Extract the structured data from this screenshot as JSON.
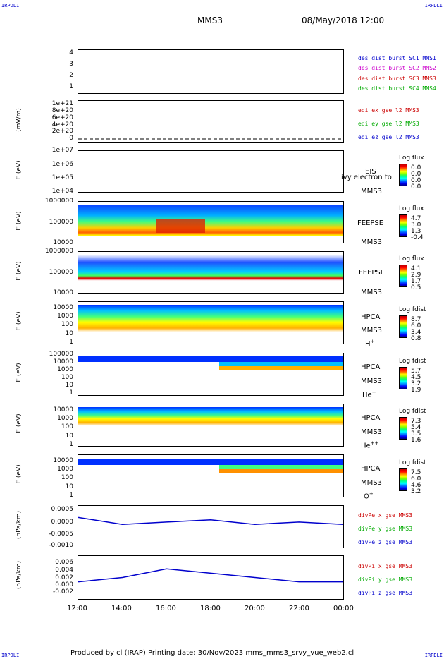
{
  "header": {
    "left_mark": "IRPDLI",
    "right_mark": "IRPDLI",
    "spacecraft": "MMS3",
    "datetime": "08/May/2018 12:00"
  },
  "footer": {
    "left_mark": "IRPDLI",
    "right_mark": "IRPDLI",
    "text": "Produced by cl (IRAP)   Printing date: 30/Nov/2023   mms_mms3_srvy_vue_web2.cl"
  },
  "x_axis": {
    "ticks": [
      "12:00",
      "14:00",
      "16:00",
      "18:00",
      "20:00",
      "22:00",
      "00:00"
    ]
  },
  "panels": {
    "burst": {
      "yticks": [
        "4",
        "3",
        "2",
        "1"
      ],
      "legend": [
        {
          "text": "des dist burst SC1 MMS1",
          "color": "#0000cc"
        },
        {
          "text": "des dist burst SC2 MMS2",
          "color": "#cc00cc"
        },
        {
          "text": "des dist burst SC3 MMS3",
          "color": "#cc0000"
        },
        {
          "text": "des dist burst SC4 MMS4",
          "color": "#00aa00"
        }
      ]
    },
    "edi": {
      "ylabel": "(mV/m)",
      "yticks": [
        "1e+21",
        "8e+20",
        "6e+20",
        "4e+20",
        "2e+20",
        "0"
      ],
      "legend": [
        {
          "text": "edi ex gse l2 MMS3",
          "color": "#cc0000"
        },
        {
          "text": "edi ey gse l2 MMS3",
          "color": "#00aa00"
        },
        {
          "text": "edi ez gse l2 MMS3",
          "color": "#0000cc"
        }
      ]
    },
    "eis": {
      "ylabel": "E (eV)",
      "yticks": [
        "1e+07",
        "1e+06",
        "1e+05",
        "1e+04"
      ],
      "instrument": "EIS",
      "overlay": "ivy electron to",
      "sc": "MMS3",
      "cbar_title": "Log flux",
      "cbar_vals": [
        "0.0",
        "0.0",
        "0.0",
        "0.0"
      ]
    },
    "feepse": {
      "ylabel": "E (eV)",
      "yticks": [
        "1000000",
        "100000",
        "10000"
      ],
      "instrument": "FEEPSE",
      "sc": "MMS3",
      "cbar_title": "Log flux",
      "cbar_vals": [
        "4.7",
        "3.0",
        "1.3",
        "-0.4"
      ]
    },
    "feepsi": {
      "ylabel": "E (eV)",
      "yticks": [
        "1000000",
        "100000",
        "10000"
      ],
      "instrument": "FEEPSI",
      "sc": "MMS3",
      "cbar_title": "Log flux",
      "cbar_vals": [
        "4.1",
        "2.9",
        "1.7",
        "0.5"
      ]
    },
    "hpca_h": {
      "ylabel": "E (eV)",
      "yticks": [
        "10000",
        "1000",
        "100",
        "10",
        "1"
      ],
      "instrument": "HPCA",
      "sc": "MMS3",
      "ion": "H",
      "charge": "+",
      "cbar_title": "Log fdist",
      "cbar_vals": [
        "8.7",
        "6.0",
        "3.4",
        "0.8"
      ]
    },
    "hpca_he": {
      "ylabel": "E (eV)",
      "yticks": [
        "100000",
        "10000",
        "1000",
        "100",
        "10",
        "1"
      ],
      "instrument": "HPCA",
      "sc": "MMS3",
      "ion": "He",
      "charge": "+",
      "cbar_title": "Log fdist",
      "cbar_vals": [
        "5.7",
        "4.5",
        "3.2",
        "1.9"
      ]
    },
    "hpca_hepp": {
      "ylabel": "E (eV)",
      "yticks": [
        "10000",
        "1000",
        "100",
        "10",
        "1"
      ],
      "instrument": "HPCA",
      "sc": "MMS3",
      "ion": "He",
      "charge": "++",
      "cbar_title": "Log fdist",
      "cbar_vals": [
        "7.3",
        "5.4",
        "3.5",
        "1.6"
      ]
    },
    "hpca_o": {
      "ylabel": "E (eV)",
      "yticks": [
        "10000",
        "1000",
        "100",
        "10",
        "1"
      ],
      "instrument": "HPCA",
      "sc": "MMS3",
      "ion": "O",
      "charge": "+",
      "cbar_title": "Log fdist",
      "cbar_vals": [
        "7.5",
        "6.0",
        "4.6",
        "3.2"
      ]
    },
    "divpe": {
      "ylabel": "(nPa/km)",
      "yticks": [
        "0.0005",
        "0.0000",
        "-0.0005",
        "-0.0010"
      ],
      "legend": [
        {
          "text": "divPe x gse MMS3",
          "color": "#cc0000"
        },
        {
          "text": "divPe y gse MMS3",
          "color": "#00aa00"
        },
        {
          "text": "divPe z gse MMS3",
          "color": "#0000cc"
        }
      ]
    },
    "divpi": {
      "ylabel": "(nPa/km)",
      "yticks": [
        "0.006",
        "0.004",
        "0.002",
        "0.000",
        "-0.002"
      ],
      "legend": [
        {
          "text": "divPi x gse MMS3",
          "color": "#cc0000"
        },
        {
          "text": "divPi y gse MMS3",
          "color": "#00aa00"
        },
        {
          "text": "divPi z gse MMS3",
          "color": "#0000cc"
        }
      ]
    }
  },
  "chart_data": {
    "type": "line",
    "x": [
      "12:00",
      "14:00",
      "16:00",
      "18:00",
      "20:00",
      "22:00",
      "00:00"
    ],
    "xlabel": "",
    "series": [
      {
        "name": "divPe z gse MMS3",
        "values": [
          0.0002,
          -0.0001,
          0.0,
          0.0001,
          -0.0001,
          0.0,
          -0.0001
        ]
      },
      {
        "name": "divPi z gse MMS3",
        "values": [
          0.001,
          0.002,
          0.004,
          0.003,
          0.002,
          0.001,
          0.001
        ]
      }
    ]
  }
}
